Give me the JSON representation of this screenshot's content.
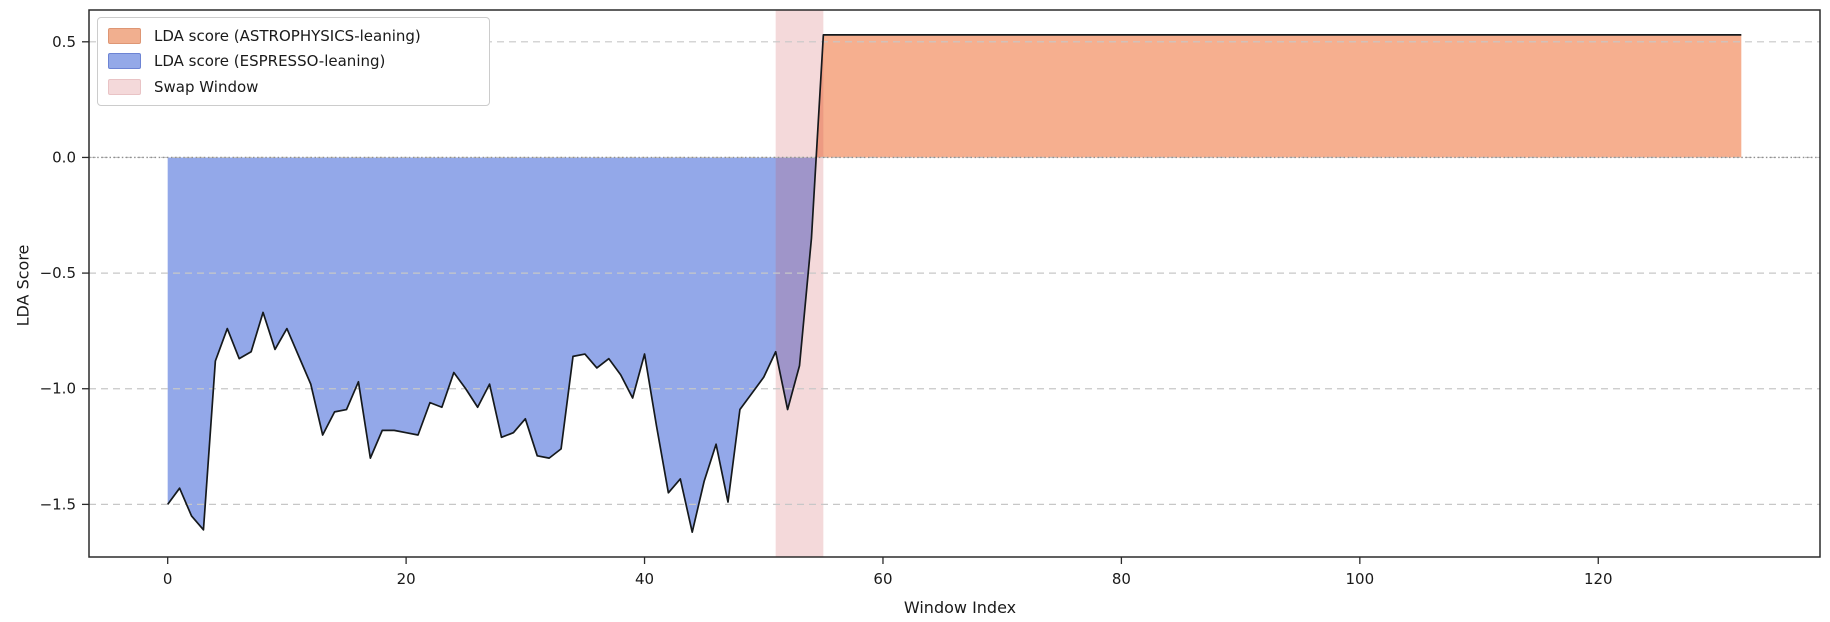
{
  "figure": {
    "xlabel": "Window Index",
    "ylabel": "LDA Score"
  },
  "legend": {
    "items": [
      {
        "label": "LDA score (ASTROPHYSICS-leaning)",
        "color": "#f1af8f",
        "edge": "#de9674"
      },
      {
        "label": "LDA score (ESPRESSO-leaning)",
        "color": "#94a9e8",
        "edge": "#6d84d4"
      },
      {
        "label": "Swap Window",
        "color": "#f4d9da",
        "edge": "#e9c3c5"
      }
    ]
  },
  "chart_data": {
    "type": "area",
    "title": "",
    "xlabel": "Window Index",
    "ylabel": "LDA Score",
    "xlim": [
      -6.6,
      138.6
    ],
    "ylim": [
      -1.7275,
      0.6375
    ],
    "x_ticks": [
      0,
      20,
      40,
      60,
      80,
      100,
      120
    ],
    "x_tick_labels": [
      "0",
      "20",
      "40",
      "60",
      "80",
      "100",
      "120"
    ],
    "y_ticks": [
      0.5,
      0.0,
      -0.5,
      -1.0,
      -1.5
    ],
    "y_tick_labels": [
      "0.5",
      "0.0",
      "−0.5",
      "−1.0",
      "−1.5"
    ],
    "grid": "horizontal-dashed",
    "zero_line": "dotted",
    "legend_position": "upper-left",
    "swap_window": {
      "x_start": 51,
      "x_end": 55,
      "label": "Swap Window"
    },
    "fills": {
      "positive_label": "LDA score (ASTROPHYSICS-leaning)",
      "negative_label": "LDA score (ESPRESSO-leaning)"
    },
    "colors": {
      "line": "#15191c",
      "positive_fill": "#f07a45",
      "positive_fill_opacity": 0.6,
      "negative_fill": "#3f63d8",
      "negative_fill_opacity": 0.56,
      "swap_band": "#cc5258",
      "swap_band_opacity": 0.22,
      "grid": "#c7c7c7",
      "zero": "#8f8f8f",
      "spine": "#2b2b2b",
      "text": "#1a1a1a"
    },
    "series": [
      {
        "name": "LDA score",
        "x_start": 0,
        "x_step": 1,
        "y": [
          -1.5,
          -1.43,
          -1.55,
          -1.61,
          -0.88,
          -0.74,
          -0.87,
          -0.84,
          -0.67,
          -0.83,
          -0.74,
          -0.86,
          -0.98,
          -1.2,
          -1.1,
          -1.09,
          -0.97,
          -1.3,
          -1.18,
          -1.18,
          -1.19,
          -1.2,
          -1.06,
          -1.08,
          -0.93,
          -1.0,
          -1.08,
          -0.98,
          -1.21,
          -1.19,
          -1.13,
          -1.29,
          -1.3,
          -1.26,
          -0.86,
          -0.85,
          -0.91,
          -0.87,
          -0.94,
          -1.04,
          -0.85,
          -1.16,
          -1.45,
          -1.39,
          -1.62,
          -1.4,
          -1.24,
          -1.49,
          -1.09,
          -1.02,
          -0.95,
          -0.84,
          -1.09,
          -0.9,
          -0.35,
          0.53,
          0.53,
          0.53,
          0.53,
          0.53,
          0.53,
          0.53,
          0.53,
          0.53,
          0.53,
          0.53,
          0.53,
          0.53,
          0.53,
          0.53,
          0.53,
          0.53,
          0.53,
          0.53,
          0.53,
          0.53,
          0.53,
          0.53,
          0.53,
          0.53,
          0.53,
          0.53,
          0.53,
          0.53,
          0.53,
          0.53,
          0.53,
          0.53,
          0.53,
          0.53,
          0.53,
          0.53,
          0.53,
          0.53,
          0.53,
          0.53,
          0.53,
          0.53,
          0.53,
          0.53,
          0.53,
          0.53,
          0.53,
          0.53,
          0.53,
          0.53,
          0.53,
          0.53,
          0.53,
          0.53,
          0.53,
          0.53,
          0.53,
          0.53,
          0.53,
          0.53,
          0.53,
          0.53,
          0.53,
          0.53,
          0.53,
          0.53,
          0.53,
          0.53,
          0.53,
          0.53,
          0.53,
          0.53,
          0.53,
          0.53,
          0.53,
          0.53,
          0.53
        ]
      }
    ]
  }
}
